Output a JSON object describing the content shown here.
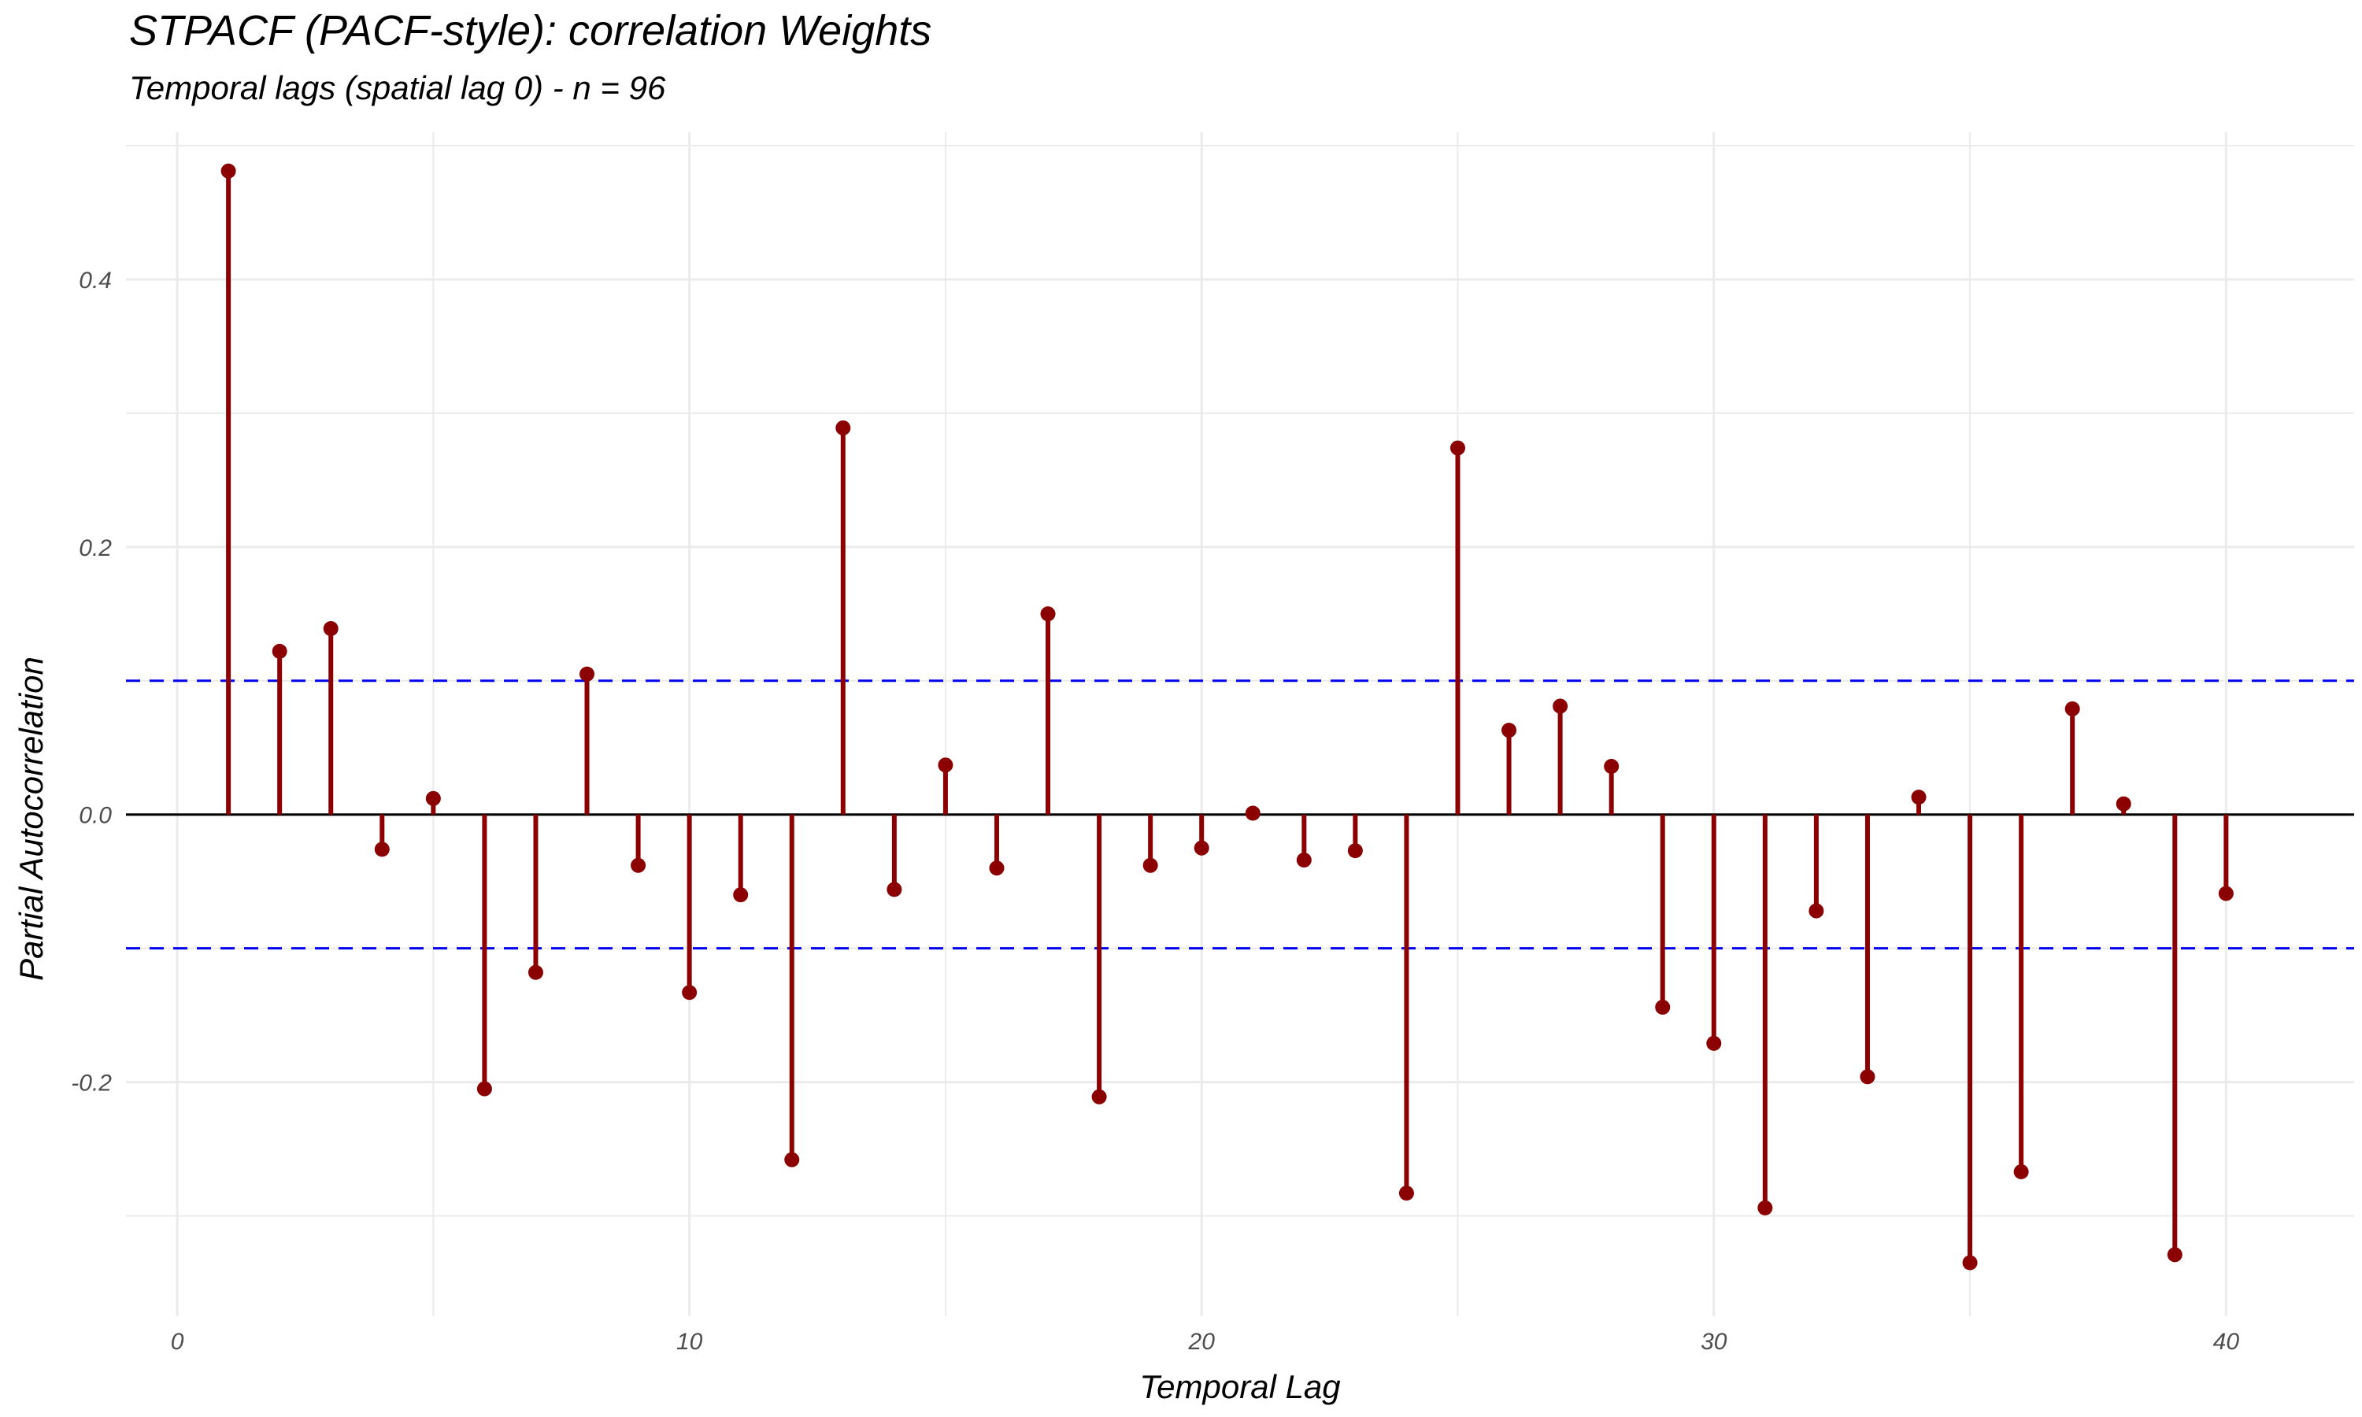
{
  "chart_data": {
    "type": "lollipop",
    "title": "STPACF (PACF-style): correlation Weights",
    "subtitle": "Temporal lags (spatial lag 0) - n = 96",
    "xlabel": "Temporal Lag",
    "ylabel": "Partial Autocorrelation",
    "x": [
      1,
      2,
      3,
      4,
      5,
      6,
      7,
      8,
      9,
      10,
      11,
      12,
      13,
      14,
      15,
      16,
      17,
      18,
      19,
      20,
      21,
      22,
      23,
      24,
      25,
      26,
      27,
      28,
      29,
      30,
      31,
      32,
      33,
      34,
      35,
      36,
      37,
      38,
      39,
      40
    ],
    "values": [
      0.481,
      0.122,
      0.139,
      -0.026,
      0.012,
      -0.205,
      -0.118,
      0.105,
      -0.038,
      -0.133,
      -0.06,
      -0.258,
      0.289,
      -0.056,
      0.037,
      -0.04,
      0.15,
      -0.211,
      -0.038,
      -0.025,
      0.001,
      -0.034,
      -0.027,
      -0.283,
      0.274,
      0.063,
      0.081,
      0.036,
      -0.144,
      -0.171,
      -0.294,
      -0.072,
      -0.196,
      0.013,
      -0.335,
      -0.267,
      0.079,
      0.008,
      -0.329,
      -0.059
    ],
    "xlim": [
      -1,
      42.5
    ],
    "ylim": [
      -0.375,
      0.51
    ],
    "x_ticks": [
      0,
      10,
      20,
      30,
      40
    ],
    "x_tick_labels": [
      "0",
      "10",
      "20",
      "30",
      "40"
    ],
    "y_ticks": [
      -0.2,
      0.0,
      0.2,
      0.4
    ],
    "y_tick_labels": [
      "-0.2",
      "0.0",
      "0.2",
      "0.4"
    ],
    "confidence_bounds": [
      0.1,
      -0.1
    ],
    "grid": true,
    "legend": "none",
    "colors": {
      "stem": "#8b0000",
      "point": "#8b0000",
      "confidence_line": "#0000ee",
      "zero_line": "#000000",
      "grid": "#ebebeb"
    }
  }
}
